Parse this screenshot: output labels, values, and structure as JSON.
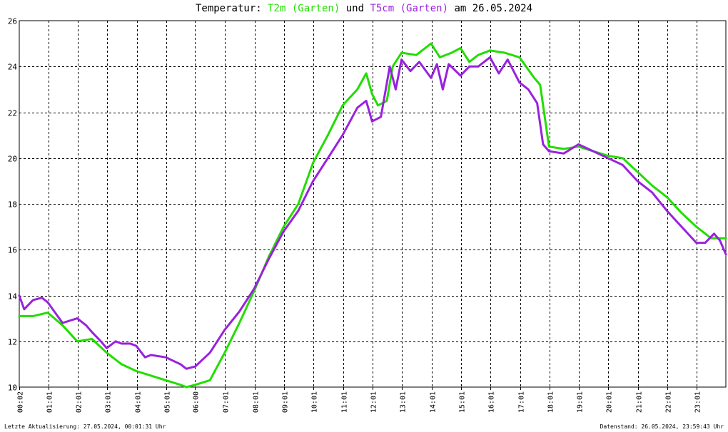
{
  "title": {
    "prefix": "Temperatur: ",
    "series1": "T2m (Garten)",
    "middle": " und ",
    "series2": "T5cm (Garten)",
    "suffix": " am 26.05.2024"
  },
  "footer": {
    "left": "Letzte Aktualisierung: 27.05.2024, 00:01:31 Uhr",
    "right": "Datenstand: 26.05.2024, 23:59:43 Uhr"
  },
  "colors": {
    "series1": "#22dd00",
    "series2": "#9922dd",
    "grid": "#000000"
  },
  "chart_data": {
    "type": "line",
    "ylim": [
      10,
      26
    ],
    "yticks": [
      "10",
      "12",
      "14",
      "16",
      "18",
      "20",
      "22",
      "24",
      "26"
    ],
    "xlim": [
      0.0333,
      24.0
    ],
    "xticks": [
      "00:02",
      "01:01",
      "02:01",
      "03:01",
      "04:01",
      "05:01",
      "06:00",
      "07:01",
      "08:01",
      "09:01",
      "10:01",
      "11:01",
      "12:01",
      "13:01",
      "14:01",
      "15:01",
      "16:01",
      "17:01",
      "18:01",
      "19:01",
      "20:01",
      "21:01",
      "22:01",
      "23:01"
    ],
    "grid": true,
    "series": [
      {
        "name": "T2m (Garten)",
        "color": "#22dd00",
        "x": [
          0.03,
          0.5,
          1.0,
          1.5,
          2.0,
          2.5,
          3.0,
          3.5,
          4.0,
          4.5,
          5.0,
          5.5,
          5.7,
          6.0,
          6.5,
          7.0,
          7.5,
          8.0,
          8.5,
          9.0,
          9.5,
          10.0,
          10.5,
          11.0,
          11.5,
          11.8,
          12.0,
          12.2,
          12.5,
          12.7,
          13.0,
          13.5,
          14.0,
          14.3,
          14.7,
          15.0,
          15.3,
          15.6,
          16.0,
          16.5,
          17.0,
          17.5,
          17.7,
          18.0,
          18.5,
          19.0,
          19.5,
          20.0,
          20.5,
          21.0,
          21.5,
          22.0,
          22.5,
          23.0,
          23.5,
          24.0
        ],
        "y": [
          13.1,
          13.1,
          13.25,
          12.7,
          12.0,
          12.1,
          11.5,
          11.0,
          10.7,
          10.5,
          10.3,
          10.1,
          10.0,
          10.1,
          10.3,
          11.5,
          12.8,
          14.2,
          15.7,
          17.0,
          18.0,
          19.8,
          21.0,
          22.3,
          23.0,
          23.7,
          22.8,
          22.3,
          22.5,
          24.0,
          24.6,
          24.5,
          25.0,
          24.4,
          24.6,
          24.8,
          24.2,
          24.5,
          24.7,
          24.6,
          24.4,
          23.5,
          23.2,
          20.5,
          20.4,
          20.5,
          20.3,
          20.1,
          20.0,
          19.4,
          18.8,
          18.3,
          17.6,
          17.0,
          16.5,
          16.5
        ]
      },
      {
        "name": "T5cm (Garten)",
        "color": "#9922dd",
        "x": [
          0.03,
          0.2,
          0.5,
          0.8,
          1.0,
          1.5,
          2.0,
          2.3,
          2.5,
          2.8,
          3.0,
          3.3,
          3.5,
          3.8,
          4.0,
          4.3,
          4.5,
          5.0,
          5.5,
          5.7,
          6.0,
          6.5,
          7.0,
          7.5,
          8.0,
          8.5,
          9.0,
          9.5,
          10.0,
          10.5,
          11.0,
          11.5,
          11.8,
          12.0,
          12.3,
          12.6,
          12.8,
          13.0,
          13.3,
          13.6,
          14.0,
          14.2,
          14.4,
          14.6,
          15.0,
          15.3,
          15.6,
          16.0,
          16.3,
          16.6,
          17.0,
          17.3,
          17.6,
          17.8,
          18.0,
          18.5,
          19.0,
          19.5,
          20.0,
          20.5,
          21.0,
          21.5,
          22.0,
          22.5,
          23.0,
          23.3,
          23.6,
          23.8,
          24.0
        ],
        "y": [
          14.0,
          13.4,
          13.8,
          13.9,
          13.7,
          12.8,
          13.0,
          12.7,
          12.4,
          12.0,
          11.7,
          12.0,
          11.9,
          11.9,
          11.8,
          11.3,
          11.4,
          11.3,
          11.0,
          10.8,
          10.9,
          11.5,
          12.5,
          13.3,
          14.3,
          15.6,
          16.8,
          17.7,
          19.0,
          20.0,
          21.0,
          22.2,
          22.5,
          21.6,
          21.8,
          24.0,
          23.0,
          24.3,
          23.8,
          24.2,
          23.5,
          24.1,
          23.0,
          24.1,
          23.6,
          24.0,
          24.0,
          24.4,
          23.7,
          24.3,
          23.3,
          23.0,
          22.4,
          20.6,
          20.3,
          20.2,
          20.6,
          20.3,
          20.0,
          19.7,
          19.0,
          18.5,
          17.7,
          17.0,
          16.3,
          16.3,
          16.7,
          16.4,
          15.8
        ]
      }
    ]
  }
}
